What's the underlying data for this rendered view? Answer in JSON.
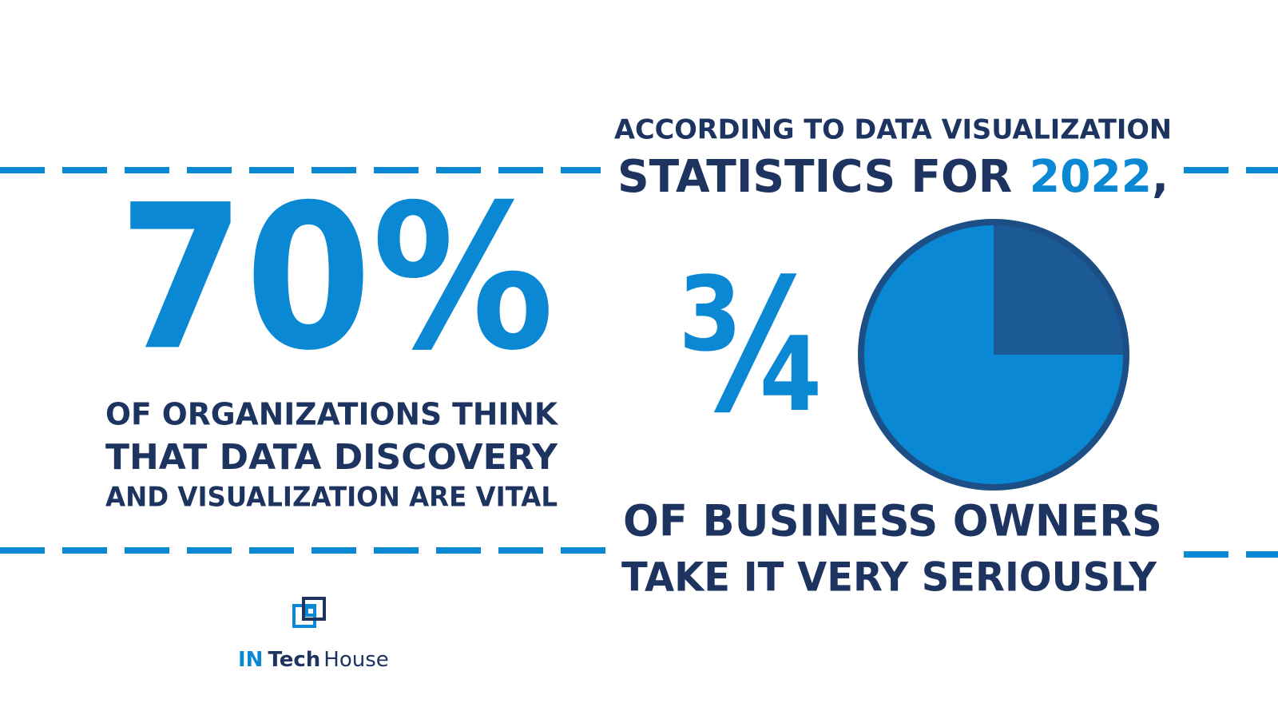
{
  "left_stat": {
    "value": "70%",
    "lines": [
      "OF ORGANIZATIONS THINK",
      "THAT DATA DISCOVERY",
      "AND VISUALIZATION ARE VITAL"
    ]
  },
  "header": {
    "line1": "ACCORDING TO DATA VISUALIZATION",
    "line2": "STATISTICS FOR",
    "year": "2022",
    "punctuation": ","
  },
  "right_stat": {
    "value": "¾",
    "lines": [
      "OF BUSINESS OWNERS",
      "TAKE IT VERY SERIOUSLY"
    ],
    "chart_data": {
      "type": "pie",
      "values": [
        25,
        75
      ],
      "colors": [
        "#1b5a94",
        "#0b88d3"
      ],
      "border_color": "#1c4f85"
    }
  },
  "logo": {
    "brand": "IN",
    "name1": "Tech",
    "name2": "House"
  }
}
